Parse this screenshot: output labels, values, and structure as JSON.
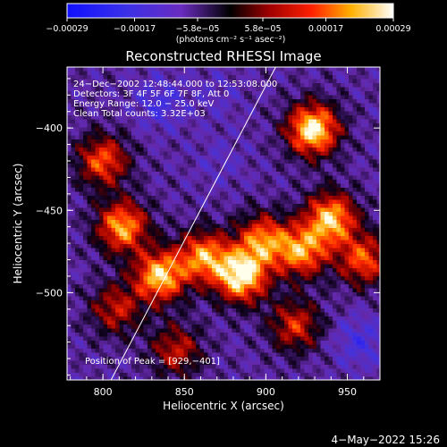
{
  "chart_data": {
    "type": "heatmap",
    "title": "Reconstructed RHESSI Image",
    "xlabel": "Heliocentric X (arcsec)",
    "ylabel": "Heliocentric Y (arcsec)",
    "xlim": [
      778,
      970
    ],
    "ylim": [
      -553,
      -363
    ],
    "x_ticks": [
      {
        "value": 800,
        "label": "800"
      },
      {
        "value": 850,
        "label": "850"
      },
      {
        "value": 900,
        "label": "900"
      },
      {
        "value": 950,
        "label": "950"
      }
    ],
    "y_ticks": [
      {
        "value": -400,
        "label": "−400"
      },
      {
        "value": -450,
        "label": "−450"
      },
      {
        "value": -500,
        "label": "−500"
      }
    ],
    "colorbar": {
      "range": [
        -0.00029,
        0.00029
      ],
      "units": "(photons cm⁻² s⁻¹ asec⁻²)",
      "ticks": [
        {
          "value": -0.00029,
          "label": "−0.00029"
        },
        {
          "value": -0.00017,
          "label": "−0.00017"
        },
        {
          "value": -5.8e-05,
          "label": "−5.8e−05"
        },
        {
          "value": 5.8e-05,
          "label": "5.8e−05"
        },
        {
          "value": 0.00017,
          "label": "0.00017"
        },
        {
          "value": 0.00029,
          "label": "0.00029"
        }
      ]
    },
    "annotations": [
      "24−Dec−2002 12:48:44.000 to 12:53:08.000",
      "Detectors: 3F 4F 5F 6F 7F 8F, Att 0",
      "Energy Range: 12.0 − 25.0 keV",
      "Clean    Total counts: 3.32E+03"
    ],
    "peak_label": "Position of Peak = [929,−401]",
    "limb_line": [
      [
        805,
        -553
      ],
      [
        906,
        -363
      ]
    ],
    "bright_regions": [
      {
        "x": 812,
        "y": -460,
        "value": 0.00022
      },
      {
        "x": 800,
        "y": -420,
        "value": 0.00016
      },
      {
        "x": 835,
        "y": -490,
        "value": 0.00025
      },
      {
        "x": 862,
        "y": -478,
        "value": 0.0002
      },
      {
        "x": 885,
        "y": -490,
        "value": 0.00029
      },
      {
        "x": 898,
        "y": -468,
        "value": 0.00018
      },
      {
        "x": 929,
        "y": -401,
        "value": 0.00029
      },
      {
        "x": 940,
        "y": -455,
        "value": 0.00024
      },
      {
        "x": 922,
        "y": -475,
        "value": 0.0002
      },
      {
        "x": 960,
        "y": -480,
        "value": 0.00016
      },
      {
        "x": 918,
        "y": -520,
        "value": 0.00012
      },
      {
        "x": 845,
        "y": -535,
        "value": 0.0001
      },
      {
        "x": 808,
        "y": -510,
        "value": 0.0001
      }
    ],
    "dim_regions": [
      {
        "x": 835,
        "y": -385,
        "value": -0.00017
      },
      {
        "x": 870,
        "y": -380,
        "value": -0.00012
      },
      {
        "x": 872,
        "y": -420,
        "value": -0.00012
      },
      {
        "x": 958,
        "y": -530,
        "value": -0.00017
      },
      {
        "x": 845,
        "y": -510,
        "value": -8e-05
      }
    ],
    "grid": false
  },
  "timestamp": "4−May−2022 15:26",
  "colors": {
    "background": "#000000",
    "text": "#ffffff",
    "limb": "#ffffff"
  }
}
